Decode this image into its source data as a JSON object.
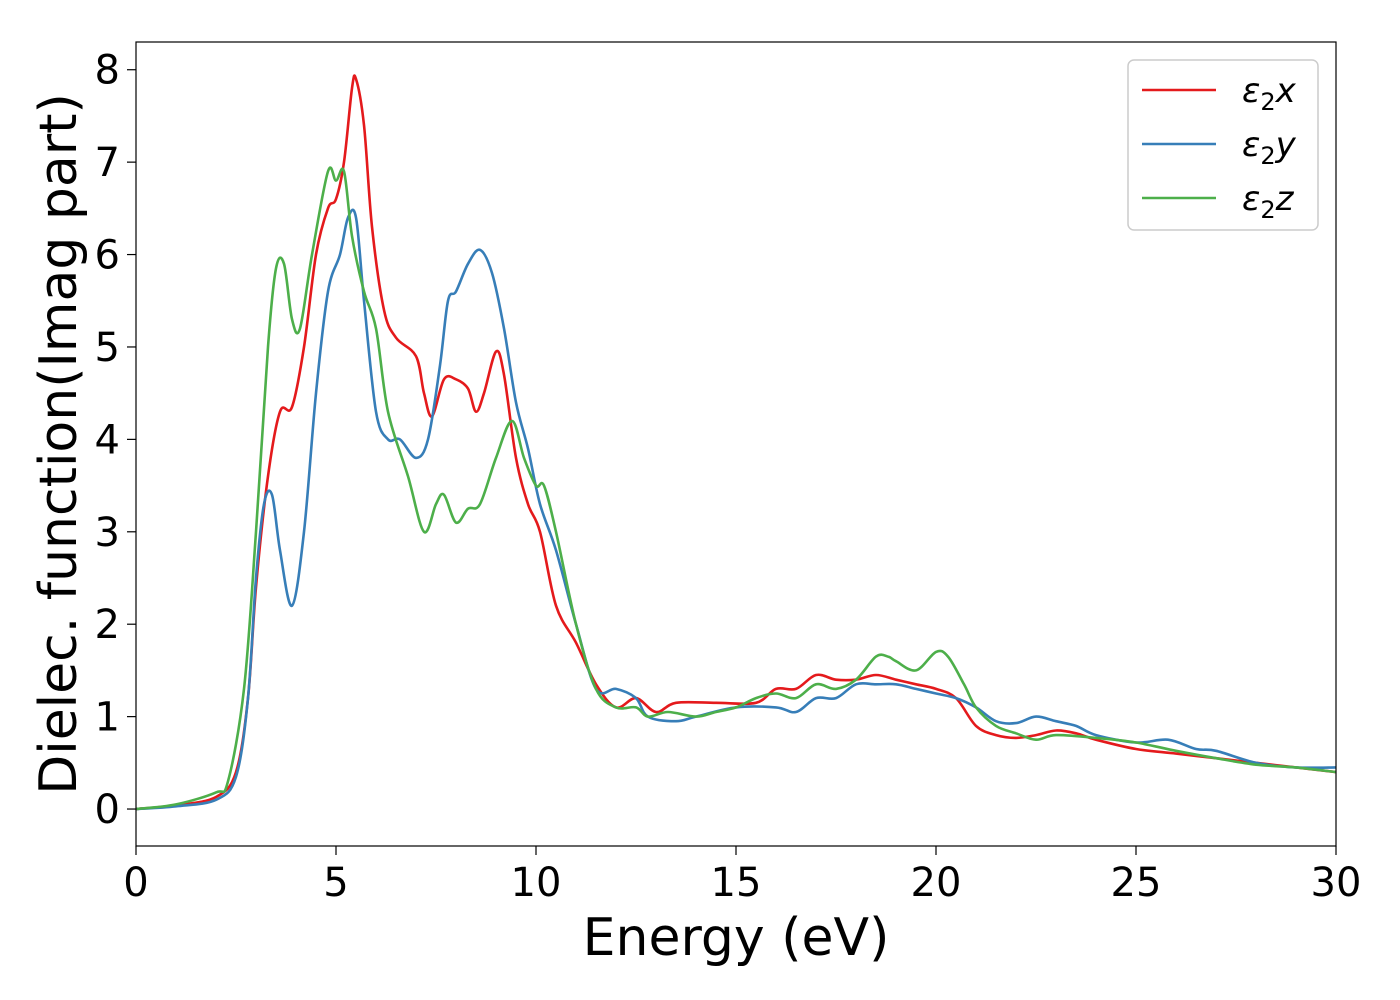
{
  "chart_data": {
    "type": "line",
    "xlabel": "Energy (eV)",
    "ylabel": "Dielec. function(Imag part)",
    "xlim": [
      0,
      30
    ],
    "ylim": [
      -0.4,
      8.3
    ],
    "xticks": [
      0,
      5,
      10,
      15,
      20,
      25,
      30
    ],
    "yticks": [
      0,
      1,
      2,
      3,
      4,
      5,
      6,
      7,
      8
    ],
    "grid": false,
    "legend_position": "top-right",
    "series": [
      {
        "name": "ε2x",
        "color": "#e41a1c",
        "points": [
          [
            0,
            0
          ],
          [
            1,
            0.04
          ],
          [
            2,
            0.13
          ],
          [
            2.5,
            0.4
          ],
          [
            2.8,
            1.2
          ],
          [
            3.0,
            2.4
          ],
          [
            3.3,
            3.6
          ],
          [
            3.6,
            4.3
          ],
          [
            3.9,
            4.35
          ],
          [
            4.2,
            5.0
          ],
          [
            4.5,
            6.0
          ],
          [
            4.8,
            6.5
          ],
          [
            5.0,
            6.6
          ],
          [
            5.2,
            7.0
          ],
          [
            5.4,
            7.8
          ],
          [
            5.5,
            7.9
          ],
          [
            5.7,
            7.4
          ],
          [
            5.9,
            6.3
          ],
          [
            6.2,
            5.4
          ],
          [
            6.5,
            5.1
          ],
          [
            7.0,
            4.9
          ],
          [
            7.2,
            4.5
          ],
          [
            7.4,
            4.25
          ],
          [
            7.7,
            4.65
          ],
          [
            8.0,
            4.65
          ],
          [
            8.3,
            4.55
          ],
          [
            8.5,
            4.3
          ],
          [
            8.7,
            4.5
          ],
          [
            9.0,
            4.95
          ],
          [
            9.2,
            4.7
          ],
          [
            9.5,
            3.8
          ],
          [
            9.8,
            3.3
          ],
          [
            10.1,
            3.0
          ],
          [
            10.5,
            2.2
          ],
          [
            11.0,
            1.8
          ],
          [
            11.5,
            1.35
          ],
          [
            12.0,
            1.1
          ],
          [
            12.5,
            1.2
          ],
          [
            13.0,
            1.05
          ],
          [
            13.5,
            1.15
          ],
          [
            14.5,
            1.15
          ],
          [
            15.5,
            1.15
          ],
          [
            16.0,
            1.3
          ],
          [
            16.5,
            1.3
          ],
          [
            17.0,
            1.45
          ],
          [
            17.5,
            1.4
          ],
          [
            18.0,
            1.4
          ],
          [
            18.5,
            1.45
          ],
          [
            19.0,
            1.4
          ],
          [
            19.5,
            1.35
          ],
          [
            20.0,
            1.3
          ],
          [
            20.5,
            1.2
          ],
          [
            21.0,
            0.9
          ],
          [
            21.5,
            0.8
          ],
          [
            22.0,
            0.77
          ],
          [
            22.5,
            0.8
          ],
          [
            23.0,
            0.85
          ],
          [
            23.5,
            0.82
          ],
          [
            24.0,
            0.75
          ],
          [
            25.0,
            0.65
          ],
          [
            26.0,
            0.6
          ],
          [
            27.0,
            0.55
          ],
          [
            28.0,
            0.5
          ],
          [
            29.0,
            0.45
          ],
          [
            30.0,
            0.4
          ]
        ]
      },
      {
        "name": "ε2y",
        "color": "#377eb8",
        "points": [
          [
            0,
            0
          ],
          [
            1,
            0.03
          ],
          [
            2,
            0.1
          ],
          [
            2.5,
            0.35
          ],
          [
            2.8,
            1.2
          ],
          [
            3.0,
            2.5
          ],
          [
            3.2,
            3.3
          ],
          [
            3.4,
            3.4
          ],
          [
            3.6,
            2.8
          ],
          [
            3.9,
            2.2
          ],
          [
            4.2,
            3.0
          ],
          [
            4.5,
            4.5
          ],
          [
            4.8,
            5.6
          ],
          [
            5.1,
            6.0
          ],
          [
            5.3,
            6.4
          ],
          [
            5.5,
            6.4
          ],
          [
            5.7,
            5.5
          ],
          [
            6.0,
            4.3
          ],
          [
            6.3,
            4.0
          ],
          [
            6.6,
            4.0
          ],
          [
            7.0,
            3.8
          ],
          [
            7.3,
            4.0
          ],
          [
            7.6,
            4.8
          ],
          [
            7.8,
            5.5
          ],
          [
            8.0,
            5.6
          ],
          [
            8.3,
            5.9
          ],
          [
            8.6,
            6.05
          ],
          [
            8.9,
            5.8
          ],
          [
            9.2,
            5.2
          ],
          [
            9.5,
            4.4
          ],
          [
            9.8,
            3.9
          ],
          [
            10.1,
            3.3
          ],
          [
            10.5,
            2.8
          ],
          [
            11.0,
            2.0
          ],
          [
            11.5,
            1.3
          ],
          [
            12.0,
            1.3
          ],
          [
            12.5,
            1.2
          ],
          [
            12.8,
            1.0
          ],
          [
            13.5,
            0.95
          ],
          [
            14.0,
            1.0
          ],
          [
            15.0,
            1.1
          ],
          [
            16.0,
            1.1
          ],
          [
            16.5,
            1.05
          ],
          [
            17.0,
            1.2
          ],
          [
            17.5,
            1.2
          ],
          [
            18.0,
            1.35
          ],
          [
            18.5,
            1.35
          ],
          [
            19.0,
            1.35
          ],
          [
            19.5,
            1.3
          ],
          [
            20.0,
            1.25
          ],
          [
            20.5,
            1.2
          ],
          [
            21.0,
            1.1
          ],
          [
            21.5,
            0.95
          ],
          [
            22.0,
            0.93
          ],
          [
            22.5,
            1.0
          ],
          [
            23.0,
            0.95
          ],
          [
            23.5,
            0.9
          ],
          [
            24.0,
            0.8
          ],
          [
            25.0,
            0.72
          ],
          [
            25.8,
            0.75
          ],
          [
            26.5,
            0.65
          ],
          [
            27.0,
            0.63
          ],
          [
            28.0,
            0.5
          ],
          [
            29.0,
            0.45
          ],
          [
            30.0,
            0.45
          ]
        ]
      },
      {
        "name": "ε2z",
        "color": "#4daf4a",
        "points": [
          [
            0,
            0
          ],
          [
            1,
            0.05
          ],
          [
            2,
            0.18
          ],
          [
            2.3,
            0.3
          ],
          [
            2.7,
            1.3
          ],
          [
            3.0,
            3.0
          ],
          [
            3.3,
            5.0
          ],
          [
            3.5,
            5.85
          ],
          [
            3.7,
            5.9
          ],
          [
            3.9,
            5.3
          ],
          [
            4.1,
            5.2
          ],
          [
            4.4,
            6.0
          ],
          [
            4.8,
            6.9
          ],
          [
            5.0,
            6.8
          ],
          [
            5.2,
            6.9
          ],
          [
            5.4,
            6.2
          ],
          [
            5.7,
            5.6
          ],
          [
            6.0,
            5.2
          ],
          [
            6.3,
            4.3
          ],
          [
            6.8,
            3.6
          ],
          [
            7.2,
            3.0
          ],
          [
            7.5,
            3.3
          ],
          [
            7.7,
            3.4
          ],
          [
            8.0,
            3.1
          ],
          [
            8.3,
            3.25
          ],
          [
            8.6,
            3.3
          ],
          [
            9.0,
            3.8
          ],
          [
            9.4,
            4.2
          ],
          [
            9.7,
            3.8
          ],
          [
            10.0,
            3.5
          ],
          [
            10.2,
            3.5
          ],
          [
            10.5,
            3.0
          ],
          [
            11.0,
            2.0
          ],
          [
            11.5,
            1.3
          ],
          [
            12.0,
            1.1
          ],
          [
            12.5,
            1.1
          ],
          [
            12.8,
            1.0
          ],
          [
            13.3,
            1.05
          ],
          [
            14.0,
            1.0
          ],
          [
            14.5,
            1.05
          ],
          [
            15.0,
            1.1
          ],
          [
            15.5,
            1.2
          ],
          [
            16.0,
            1.25
          ],
          [
            16.5,
            1.2
          ],
          [
            17.0,
            1.35
          ],
          [
            17.5,
            1.3
          ],
          [
            18.0,
            1.4
          ],
          [
            18.5,
            1.65
          ],
          [
            18.8,
            1.65
          ],
          [
            19.0,
            1.6
          ],
          [
            19.5,
            1.5
          ],
          [
            20.0,
            1.7
          ],
          [
            20.3,
            1.65
          ],
          [
            20.7,
            1.35
          ],
          [
            21.0,
            1.1
          ],
          [
            21.5,
            0.9
          ],
          [
            22.0,
            0.82
          ],
          [
            22.5,
            0.75
          ],
          [
            23.0,
            0.8
          ],
          [
            24.0,
            0.77
          ],
          [
            25.0,
            0.72
          ],
          [
            26.0,
            0.63
          ],
          [
            27.0,
            0.55
          ],
          [
            28.0,
            0.48
          ],
          [
            29.0,
            0.45
          ],
          [
            30.0,
            0.4
          ]
        ]
      }
    ]
  }
}
